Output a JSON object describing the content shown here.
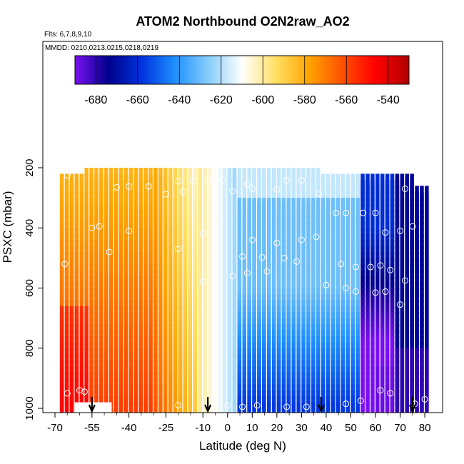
{
  "chart_data": {
    "type": "heatmap",
    "title": "ATOM2 Northbound O2N2raw_AO2",
    "flights_note": "Flts: 6,7,8,9,10",
    "dates_note": "MMDD: 0210,0213,0215,0218,0219",
    "xlabel": "Latitude (deg N)",
    "ylabel": "PSXC (mbar)",
    "xlim": [
      -70,
      82
    ],
    "ylim": [
      1000,
      0
    ],
    "x_ticks": [
      -70,
      -55,
      -40,
      -25,
      -10,
      0,
      10,
      20,
      30,
      40,
      50,
      60,
      70,
      80
    ],
    "x_tick_labels": [
      "-70",
      "-55",
      "-40",
      "-25",
      "-10",
      "0",
      "10",
      "20",
      "30",
      "40",
      "50",
      "60",
      "70",
      "80"
    ],
    "y_ticks": [
      200,
      400,
      600,
      800,
      1000
    ],
    "y_tick_labels": [
      "200",
      "400",
      "600",
      "800",
      "1000"
    ],
    "colorbar": {
      "range": [
        -690,
        -530
      ],
      "ticks": [
        -680,
        -660,
        -640,
        -620,
        -600,
        -580,
        -560,
        -540
      ],
      "tick_labels": [
        "-680",
        "-660",
        "-640",
        "-620",
        "-600",
        "-580",
        "-560",
        "-540"
      ],
      "colors": [
        "#7a10f0",
        "#00008b",
        "#0033dd",
        "#1e90ff",
        "#87cefa",
        "#ffffff",
        "#ffe066",
        "#ffa500",
        "#ff5000",
        "#ff0000",
        "#b00000"
      ]
    },
    "arrows_latitude": [
      -55,
      -8,
      38,
      75
    ],
    "grid": false,
    "legend": "colorbar-top"
  }
}
